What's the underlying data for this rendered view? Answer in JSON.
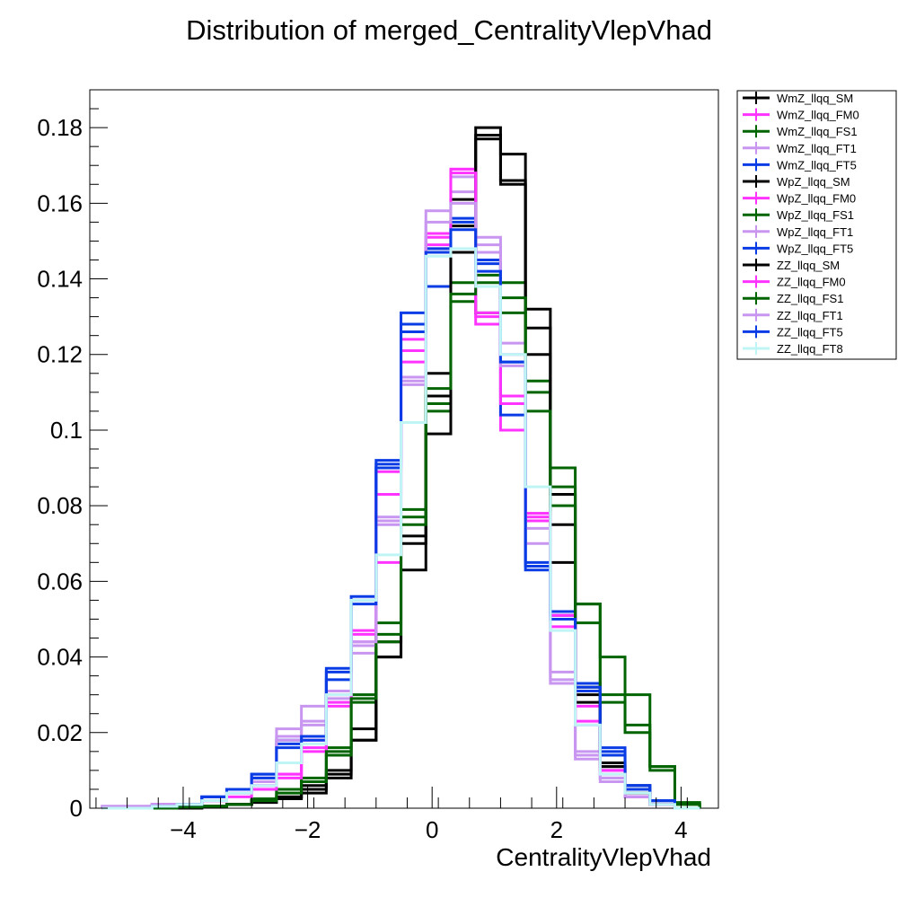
{
  "chart_data": {
    "type": "histogram",
    "title": "Distribution of merged_CentralityVlepVhad",
    "xlabel": "CentralityVlepVhad",
    "ylabel": "",
    "xlim": [
      -5.5,
      4.6
    ],
    "ylim": [
      0,
      0.19
    ],
    "xticks": [
      -4,
      -2,
      0,
      2,
      4
    ],
    "xtick_labels": [
      "−4",
      "−2",
      "0",
      "2",
      "4"
    ],
    "yticks": [
      0,
      0.02,
      0.04,
      0.06,
      0.08,
      0.1,
      0.12,
      0.14,
      0.16,
      0.18
    ],
    "ytick_labels": [
      "0",
      "0.02",
      "0.04",
      "0.06",
      "0.08",
      "0.1",
      "0.12",
      "0.14",
      "0.16",
      "0.18"
    ],
    "grid": false,
    "legend_position": "top-right outside",
    "bin_edges": [
      -5.3,
      -4.9,
      -4.5,
      -4.1,
      -3.7,
      -3.3,
      -2.9,
      -2.5,
      -2.1,
      -1.7,
      -1.3,
      -0.9,
      -0.5,
      -0.1,
      0.3,
      0.7,
      1.1,
      1.5,
      1.9,
      2.3,
      2.7,
      3.1,
      3.5,
      3.9,
      4.3
    ],
    "series": [
      {
        "name": "WmZ_llqq_SM",
        "color": "#000000",
        "values": [
          0,
          0,
          0,
          0.0003,
          0.0005,
          0.001,
          0.0015,
          0.0025,
          0.004,
          0.008,
          0.018,
          0.04,
          0.072,
          0.109,
          0.161,
          0.178,
          0.166,
          0.12,
          0.065,
          0.03,
          0.012,
          0.006,
          0.002,
          0
        ]
      },
      {
        "name": "WmZ_llqq_FM0",
        "color": "#ff33ff",
        "values": [
          0,
          0,
          0.0005,
          0.001,
          0.002,
          0.004,
          0.006,
          0.009,
          0.018,
          0.03,
          0.047,
          0.065,
          0.124,
          0.151,
          0.169,
          0.128,
          0.1,
          0.076,
          0.051,
          0.027,
          0.01,
          0.003,
          0.001,
          0
        ]
      },
      {
        "name": "WmZ_llqq_FS1",
        "color": "#006400",
        "values": [
          0,
          0,
          0,
          0.0003,
          0.0005,
          0.001,
          0.0025,
          0.005,
          0.008,
          0.016,
          0.03,
          0.049,
          0.079,
          0.105,
          0.139,
          0.141,
          0.139,
          0.113,
          0.09,
          0.054,
          0.04,
          0.03,
          0.011,
          0.0015
        ]
      },
      {
        "name": "WmZ_llqq_FT1",
        "color": "#c896f0",
        "values": [
          0.0005,
          0.0005,
          0.001,
          0.001,
          0.003,
          0.005,
          0.008,
          0.021,
          0.027,
          0.029,
          0.041,
          0.077,
          0.114,
          0.158,
          0.167,
          0.151,
          0.123,
          0.078,
          0.033,
          0.013,
          0.008,
          0.003,
          0.001,
          0
        ]
      },
      {
        "name": "WmZ_llqq_FT5",
        "color": "#0a3ce6",
        "values": [
          0,
          0,
          0.0005,
          0.001,
          0.003,
          0.005,
          0.009,
          0.018,
          0.019,
          0.037,
          0.056,
          0.092,
          0.131,
          0.138,
          0.156,
          0.145,
          0.118,
          0.063,
          0.051,
          0.033,
          0.016,
          0.006,
          0.002,
          0
        ]
      },
      {
        "name": "WpZ_llqq_SM",
        "color": "#000000",
        "values": [
          0,
          0,
          0,
          0,
          0.0005,
          0.001,
          0.002,
          0.003,
          0.005,
          0.01,
          0.021,
          0.044,
          0.07,
          0.115,
          0.154,
          0.177,
          0.165,
          0.132,
          0.083,
          0.032,
          0.011,
          0.004,
          0.001,
          0
        ]
      },
      {
        "name": "WpZ_llqq_FM0",
        "color": "#ff33ff",
        "values": [
          0,
          0,
          0.001,
          0.001,
          0.002,
          0.004,
          0.006,
          0.009,
          0.015,
          0.027,
          0.044,
          0.089,
          0.118,
          0.149,
          0.169,
          0.13,
          0.109,
          0.077,
          0.051,
          0.023,
          0.009,
          0.003,
          0.001,
          0
        ]
      },
      {
        "name": "WpZ_llqq_FS1",
        "color": "#006400",
        "values": [
          0,
          0,
          0,
          0.0003,
          0.0005,
          0.001,
          0.002,
          0.005,
          0.007,
          0.015,
          0.028,
          0.044,
          0.077,
          0.107,
          0.134,
          0.131,
          0.131,
          0.11,
          0.085,
          0.054,
          0.03,
          0.022,
          0.011,
          0.001
        ]
      },
      {
        "name": "WpZ_llqq_FT1",
        "color": "#c896f0",
        "values": [
          0.0005,
          0.0005,
          0.001,
          0.001,
          0.002,
          0.005,
          0.008,
          0.019,
          0.022,
          0.031,
          0.043,
          0.075,
          0.113,
          0.148,
          0.163,
          0.149,
          0.12,
          0.07,
          0.036,
          0.015,
          0.007,
          0.003,
          0.001,
          0
        ]
      },
      {
        "name": "WpZ_llqq_FT5",
        "color": "#0a3ce6",
        "values": [
          0,
          0,
          0.0005,
          0.001,
          0.003,
          0.005,
          0.009,
          0.017,
          0.018,
          0.034,
          0.055,
          0.091,
          0.128,
          0.148,
          0.155,
          0.144,
          0.104,
          0.065,
          0.052,
          0.031,
          0.014,
          0.005,
          0.002,
          0
        ]
      },
      {
        "name": "ZZ_llqq_SM",
        "color": "#000000",
        "values": [
          0,
          0,
          0,
          0,
          0.0005,
          0.001,
          0.002,
          0.003,
          0.006,
          0.009,
          0.018,
          0.04,
          0.063,
          0.099,
          0.147,
          0.18,
          0.173,
          0.127,
          0.075,
          0.028,
          0.011,
          0.004,
          0.001,
          0
        ]
      },
      {
        "name": "ZZ_llqq_FM0",
        "color": "#ff33ff",
        "values": [
          0,
          0,
          0.0005,
          0.001,
          0.002,
          0.003,
          0.005,
          0.008,
          0.016,
          0.028,
          0.046,
          0.083,
          0.121,
          0.152,
          0.168,
          0.131,
          0.107,
          0.078,
          0.048,
          0.022,
          0.01,
          0.003,
          0.001,
          0
        ]
      },
      {
        "name": "ZZ_llqq_FS1",
        "color": "#006400",
        "values": [
          0,
          0,
          0,
          0.0003,
          0.0005,
          0.001,
          0.002,
          0.004,
          0.007,
          0.014,
          0.029,
          0.046,
          0.075,
          0.111,
          0.136,
          0.139,
          0.135,
          0.105,
          0.08,
          0.049,
          0.028,
          0.02,
          0.01,
          0.001
        ]
      },
      {
        "name": "ZZ_llqq_FT1",
        "color": "#c896f0",
        "values": [
          0.0005,
          0.0005,
          0.001,
          0.001,
          0.002,
          0.004,
          0.007,
          0.018,
          0.023,
          0.03,
          0.044,
          0.076,
          0.112,
          0.155,
          0.16,
          0.147,
          0.117,
          0.074,
          0.034,
          0.014,
          0.008,
          0.003,
          0.001,
          0
        ]
      },
      {
        "name": "ZZ_llqq_FT5",
        "color": "#0a3ce6",
        "values": [
          0,
          0,
          0.0005,
          0.001,
          0.003,
          0.005,
          0.008,
          0.016,
          0.019,
          0.036,
          0.054,
          0.09,
          0.126,
          0.147,
          0.153,
          0.142,
          0.118,
          0.064,
          0.05,
          0.032,
          0.015,
          0.006,
          0.002,
          0
        ]
      },
      {
        "name": "ZZ_llqq_FT8",
        "color": "#bff5f5",
        "values": [
          0,
          0,
          0.0005,
          0.001,
          0.002,
          0.004,
          0.006,
          0.012,
          0.017,
          0.03,
          0.055,
          0.067,
          0.102,
          0.146,
          0.148,
          0.138,
          0.12,
          0.085,
          0.047,
          0.022,
          0.009,
          0.004,
          0.001,
          0
        ]
      }
    ]
  }
}
